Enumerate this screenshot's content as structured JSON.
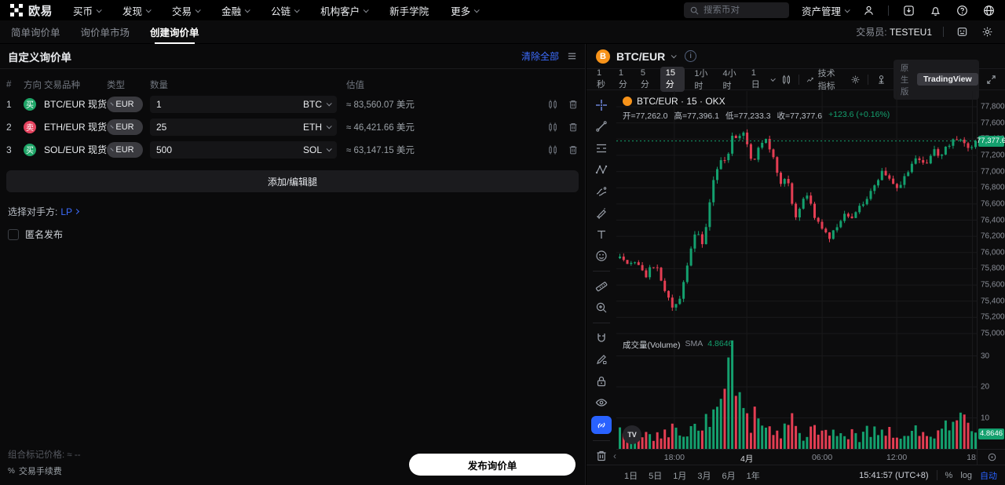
{
  "topnav": {
    "brand": "欧易",
    "menus": [
      {
        "label": "买币",
        "caret": true
      },
      {
        "label": "发现",
        "caret": true
      },
      {
        "label": "交易",
        "caret": true
      },
      {
        "label": "金融",
        "caret": true
      },
      {
        "label": "公链",
        "caret": true
      },
      {
        "label": "机构客户",
        "caret": true
      },
      {
        "label": "新手学院",
        "caret": false
      },
      {
        "label": "更多",
        "caret": true
      }
    ],
    "search_placeholder": "搜索币对",
    "assets_label": "资产管理"
  },
  "subnav": {
    "tabs": [
      "简单询价单",
      "询价单市场",
      "创建询价单"
    ],
    "trader_label": "交易员:",
    "trader_value": "TESTEU1"
  },
  "left_panel": {
    "title": "自定义询价单",
    "clear_all": "清除全部",
    "table": {
      "headers": {
        "index": "#",
        "direction": "方向",
        "instrument": "交易品种",
        "type": "类型",
        "amount": "数量",
        "value": "估值"
      },
      "rows": [
        {
          "index": "1",
          "side": "买",
          "instrument": "BTC/EUR 现货",
          "currency": "EUR",
          "amount": "1",
          "asset": "BTC",
          "value": "≈ 83,560.07 美元"
        },
        {
          "index": "2",
          "side": "卖",
          "instrument": "ETH/EUR 现货",
          "currency": "EUR",
          "amount": "25",
          "asset": "ETH",
          "value": "≈ 46,421.66 美元"
        },
        {
          "index": "3",
          "side": "买",
          "instrument": "SOL/EUR 现货",
          "currency": "EUR",
          "amount": "500",
          "asset": "SOL",
          "value": "≈ 63,147.15 美元"
        }
      ]
    },
    "add_edit_leg": "添加/编辑腿",
    "counterparty_label": "选择对手方:",
    "counterparty_value": "LP",
    "anonymous_label": "匿名发布",
    "footer": {
      "mark_price_label": "组合标记价格:",
      "mark_price_value": "≈ --",
      "fee_label": "交易手续费",
      "fee_icon": "%"
    },
    "publish_button": "发布询价单"
  },
  "chart_panel": {
    "symbol": "BTC/EUR",
    "intervals": [
      "1秒",
      "1分",
      "5分",
      "15分",
      "1小时",
      "4小时",
      "1日"
    ],
    "active_interval": "15分",
    "indicators_label": "技术指标",
    "native_label": "原生版",
    "tradingview_label": "TradingView",
    "legend": {
      "title": "BTC/EUR · 15 · OKX",
      "open": "开=77,262.0",
      "high": "高=77,396.1",
      "low": "低=77,233.3",
      "close": "收=77,377.6",
      "change": "+123.6 (+0.16%)"
    },
    "volume_label": "成交量(Volume)",
    "sma_label": "SMA",
    "sma_value": "4.8646",
    "last_price_badge": "77,377.6",
    "volume_badge": "4.8646",
    "tv_watermark": "TV",
    "range_tabs": [
      "1日",
      "5日",
      "1月",
      "3月",
      "6月",
      "1年"
    ],
    "clock": "15:41:57 (UTC+8)",
    "percent_label": "%",
    "log_label": "log",
    "auto_label": "自动",
    "scroll_left_glyph": "‹"
  },
  "chart_data": {
    "type": "candlestick",
    "title": "BTC/EUR · 15 · OKX",
    "ohlc_current": {
      "open": 77262.0,
      "high": 77396.1,
      "low": 77233.3,
      "close": 77377.6,
      "change": 123.6,
      "change_pct": 0.16
    },
    "last_price": 77377.6,
    "num_candles": 96,
    "price_axis": {
      "max": 77800,
      "min": 75000,
      "step": 200,
      "ticks": [
        "77,800.0",
        "77,600.0",
        "77,400.0",
        "77,200.0",
        "77,000.0",
        "76,800.0",
        "76,600.0",
        "76,400.0",
        "76,200.0",
        "76,000.0",
        "75,800.0",
        "75,600.0",
        "75,400.0",
        "75,200.0",
        "75,000.0"
      ]
    },
    "volume_axis": {
      "ticks": [
        30,
        20,
        10
      ],
      "sma": 4.8646
    },
    "time_labels": [
      {
        "label": "18:00",
        "pos": 0.161,
        "major": false
      },
      {
        "label": "4月",
        "pos": 0.362,
        "major": true
      },
      {
        "label": "06:00",
        "pos": 0.571,
        "major": false
      },
      {
        "label": "12:00",
        "pos": 0.778,
        "major": false
      },
      {
        "label": "18:",
        "pos": 0.988,
        "major": false
      }
    ],
    "price_anchors": [
      [
        0,
        75930
      ],
      [
        0.02,
        75840
      ],
      [
        0.045,
        75900
      ],
      [
        0.07,
        75700
      ],
      [
        0.1,
        75880
      ],
      [
        0.12,
        75600
      ],
      [
        0.145,
        75330
      ],
      [
        0.17,
        75420
      ],
      [
        0.19,
        75850
      ],
      [
        0.215,
        76280
      ],
      [
        0.235,
        76080
      ],
      [
        0.26,
        76850
      ],
      [
        0.285,
        77180
      ],
      [
        0.3,
        77120
      ],
      [
        0.315,
        77480
      ],
      [
        0.33,
        77400
      ],
      [
        0.345,
        77550
      ],
      [
        0.36,
        77280
      ],
      [
        0.375,
        77120
      ],
      [
        0.39,
        77320
      ],
      [
        0.41,
        77440
      ],
      [
        0.43,
        77180
      ],
      [
        0.45,
        76830
      ],
      [
        0.47,
        76950
      ],
      [
        0.49,
        76420
      ],
      [
        0.51,
        76620
      ],
      [
        0.53,
        76680
      ],
      [
        0.55,
        76420
      ],
      [
        0.57,
        76310
      ],
      [
        0.59,
        76180
      ],
      [
        0.61,
        76330
      ],
      [
        0.63,
        76480
      ],
      [
        0.65,
        76400
      ],
      [
        0.67,
        76560
      ],
      [
        0.7,
        76700
      ],
      [
        0.72,
        76880
      ],
      [
        0.74,
        77020
      ],
      [
        0.76,
        76920
      ],
      [
        0.78,
        76780
      ],
      [
        0.8,
        76920
      ],
      [
        0.82,
        77080
      ],
      [
        0.84,
        77170
      ],
      [
        0.86,
        77080
      ],
      [
        0.88,
        77260
      ],
      [
        0.9,
        77190
      ],
      [
        0.92,
        77310
      ],
      [
        0.94,
        77430
      ],
      [
        0.96,
        77350
      ],
      [
        0.98,
        77300
      ],
      [
        1.0,
        77377.6
      ]
    ],
    "volume_anchors": [
      [
        0,
        5
      ],
      [
        0.04,
        7
      ],
      [
        0.08,
        4
      ],
      [
        0.12,
        6
      ],
      [
        0.145,
        8
      ],
      [
        0.18,
        5
      ],
      [
        0.21,
        6
      ],
      [
        0.24,
        9
      ],
      [
        0.27,
        13
      ],
      [
        0.295,
        20
      ],
      [
        0.315,
        35
      ],
      [
        0.325,
        16
      ],
      [
        0.34,
        13
      ],
      [
        0.36,
        9
      ],
      [
        0.39,
        11
      ],
      [
        0.42,
        7
      ],
      [
        0.45,
        6
      ],
      [
        0.48,
        9
      ],
      [
        0.51,
        5
      ],
      [
        0.55,
        6
      ],
      [
        0.58,
        8
      ],
      [
        0.61,
        5
      ],
      [
        0.64,
        6
      ],
      [
        0.67,
        4
      ],
      [
        0.7,
        6
      ],
      [
        0.73,
        5
      ],
      [
        0.76,
        7
      ],
      [
        0.79,
        4
      ],
      [
        0.82,
        6
      ],
      [
        0.85,
        5
      ],
      [
        0.88,
        4
      ],
      [
        0.91,
        6
      ],
      [
        0.94,
        9
      ],
      [
        0.96,
        12
      ],
      [
        0.98,
        7
      ],
      [
        1.0,
        5
      ]
    ],
    "colors": {
      "up": "#14a06e",
      "down": "#e43e53",
      "grid": "#19191b",
      "price_line": "#14a06e"
    }
  }
}
